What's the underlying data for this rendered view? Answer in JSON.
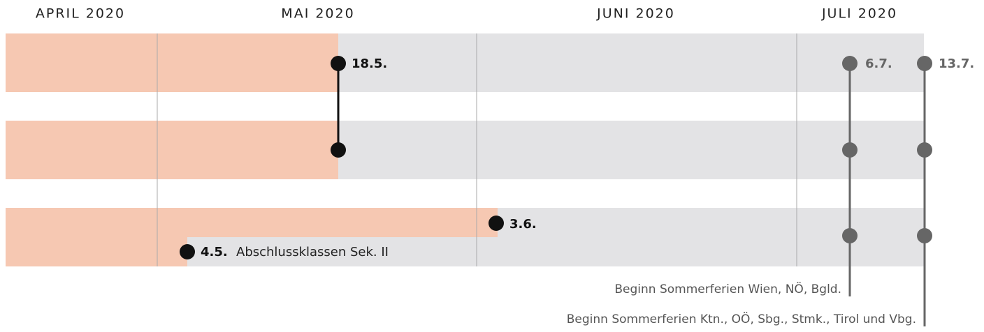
{
  "months": [
    "APRIL 2020",
    "MAI 2020",
    "JUNI 2020",
    "JULI 2020"
  ],
  "markers": {
    "reopening_1": "18.5.",
    "reopening_3": "3.6.",
    "graduates": "4.5.",
    "graduates_note": "Abschlussklassen Sek. II",
    "summer_east": "6.7.",
    "summer_west": "13.7."
  },
  "notes": [
    "Beginn Sommerferien Wien, NÖ, Bgld.",
    "Beginn Sommerferien Ktn., OÖ, Sbg., Stmk., Tirol und Vbg."
  ]
}
